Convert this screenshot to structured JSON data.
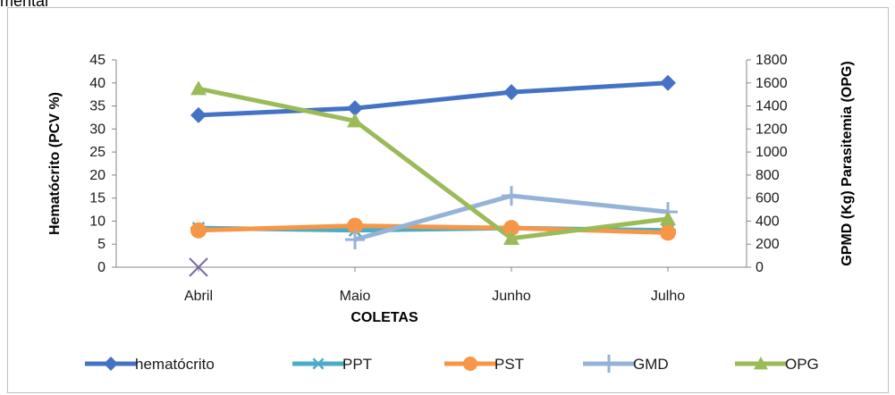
{
  "top_fragment": "mental",
  "chart_data": {
    "type": "line",
    "categories": [
      "Abril",
      "Maio",
      "Junho",
      "Julho"
    ],
    "xlabel": "COLETAS",
    "ylabel_left": "Hematócrito (PCV %)",
    "ylabel_right": "GPMD (Kg) Parasitemia (OPG)",
    "ylim_left": [
      0,
      45
    ],
    "yticks_left": [
      0,
      5,
      10,
      15,
      20,
      25,
      30,
      35,
      40,
      45
    ],
    "ylim_right": [
      0,
      1800
    ],
    "yticks_right": [
      0,
      200,
      400,
      600,
      800,
      1000,
      1200,
      1400,
      1600,
      1800
    ],
    "grid": false,
    "legend_position": "bottom",
    "series": [
      {
        "name": "hematócrito",
        "axis": "left",
        "values": [
          33,
          34.5,
          38,
          40
        ],
        "color": "#4472C4",
        "marker": "diamond"
      },
      {
        "name": "PPT",
        "axis": "left",
        "values": [
          8.5,
          8,
          8.5,
          8
        ],
        "color": "#4BACC6",
        "marker": "star"
      },
      {
        "name": "PST",
        "axis": "left",
        "values": [
          8,
          9,
          8.5,
          7.5
        ],
        "color": "#F79646",
        "marker": "circle"
      },
      {
        "name": "GMD",
        "axis": "right",
        "values": [
          0,
          240,
          620,
          480
        ],
        "color": "#95B3D7",
        "marker": "plus"
      },
      {
        "name": "OPG",
        "axis": "right",
        "values": [
          1550,
          1270,
          250,
          420
        ],
        "color": "#9BBB59",
        "marker": "triangle"
      }
    ],
    "annotations": [
      {
        "series": "GMD",
        "category": "Abril",
        "marker": "x",
        "color": "#7F6A9F"
      }
    ]
  }
}
